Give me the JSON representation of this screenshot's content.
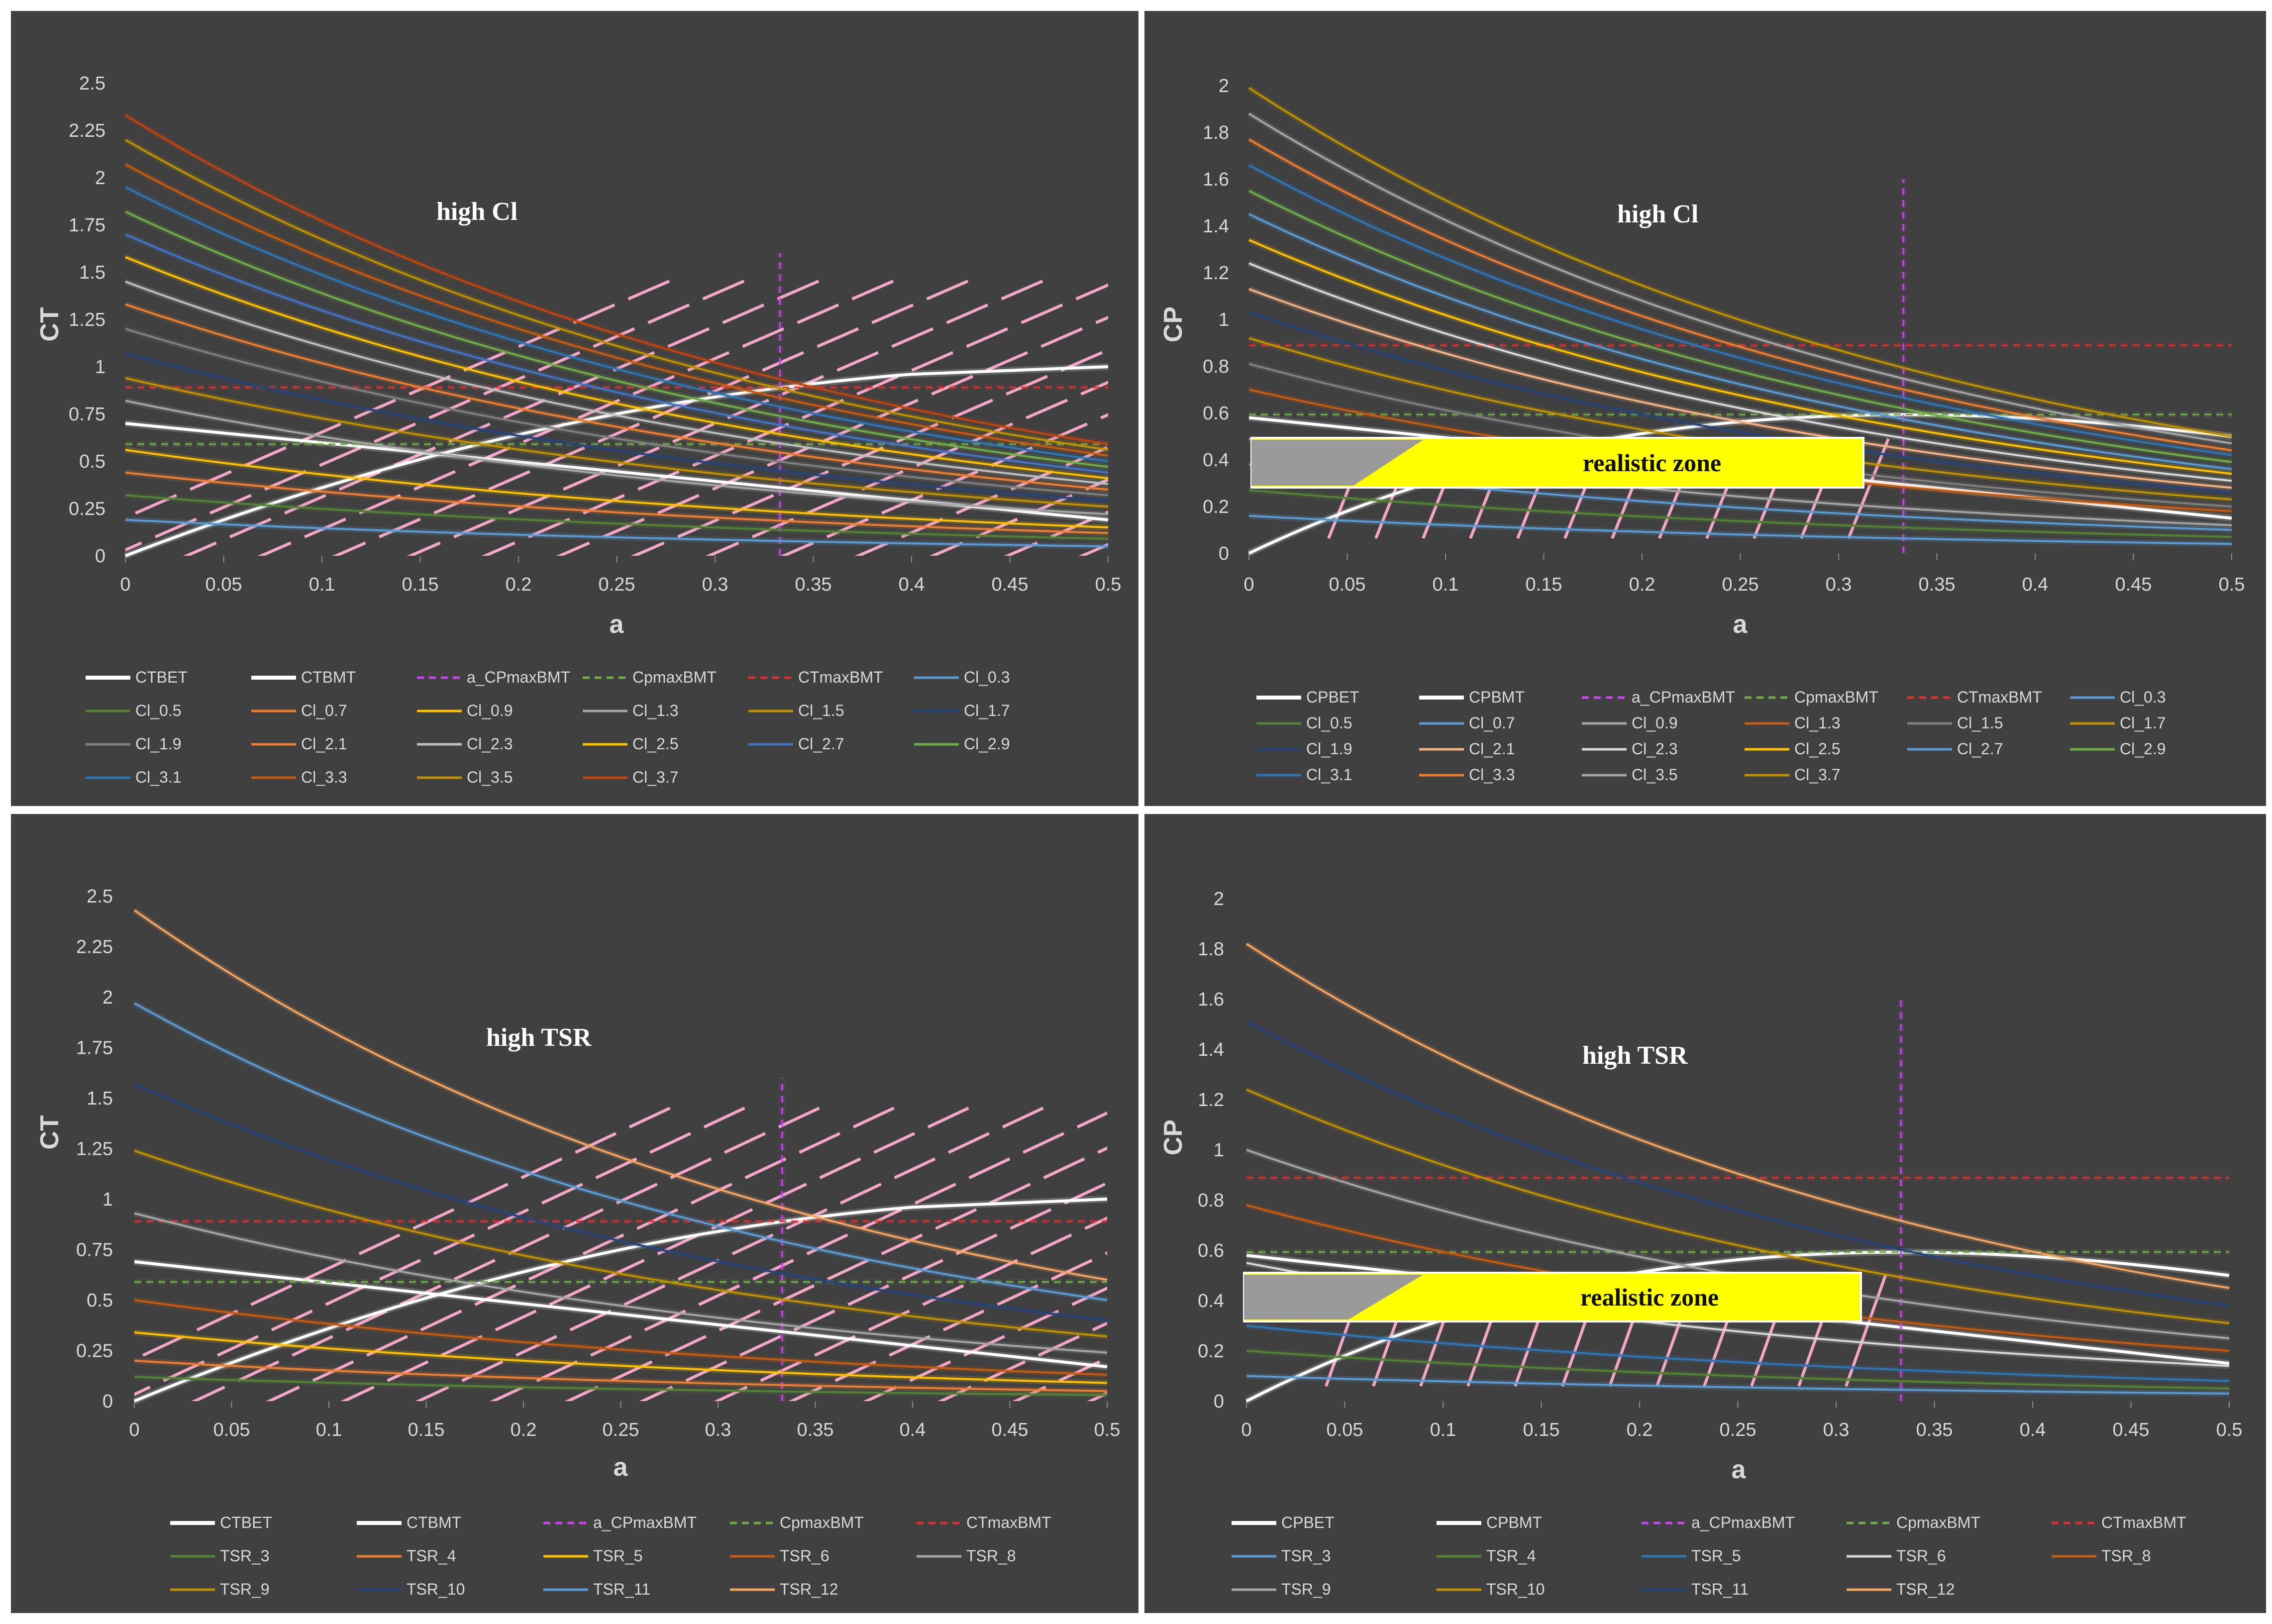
{
  "chart_data": [
    {
      "id": "p1",
      "type": "line",
      "ylabel": "CT",
      "xlabel": "a",
      "xlim": [
        0,
        0.5
      ],
      "ylim": [
        0,
        2.5
      ],
      "xticks": [
        "0",
        "0.05",
        "0.1",
        "0.15",
        "0.2",
        "0.25",
        "0.3",
        "0.35",
        "0.4",
        "0.45",
        "0.5"
      ],
      "yticks": [
        "0",
        "0.25",
        "0.5",
        "0.75",
        "1",
        "1.25",
        "1.5",
        "1.75",
        "2",
        "2.25",
        "2.5"
      ],
      "annotation": "high Cl",
      "legend_rows": [
        [
          "CTBET",
          "CTBMT",
          "a_CPmaxBMT",
          "CpmaxBMT",
          "CTmaxBMT",
          "Cl_0.3"
        ],
        [
          "Cl_0.5",
          "Cl_0.7",
          "Cl_0.9",
          "Cl_1.3",
          "Cl_1.5",
          "Cl_1.7"
        ],
        [
          "Cl_1.9",
          "Cl_2.1",
          "Cl_2.3",
          "Cl_2.5",
          "Cl_2.7",
          "Cl_2.9"
        ],
        [
          "Cl_3.1",
          "Cl_3.3",
          "Cl_3.5",
          "Cl_3.7"
        ]
      ],
      "series": [
        {
          "name": "CTBET",
          "color": "#ffffff",
          "width": 6,
          "dash": "",
          "kind": "rise",
          "start": 0.0,
          "end": 1.0
        },
        {
          "name": "CTBMT",
          "color": "#ffffff",
          "width": 6,
          "dash": "",
          "kind": "linear",
          "start": 0.7,
          "end": 0.19
        },
        {
          "name": "a_CPmaxBMT",
          "color": "#cc44ee",
          "width": 3,
          "dash": "14,10",
          "kind": "vline",
          "x": 0.333,
          "y0": 0,
          "y1": 1.6
        },
        {
          "name": "CpmaxBMT",
          "color": "#70ad47",
          "width": 3,
          "dash": "14,10",
          "kind": "hline",
          "y": 0.59
        },
        {
          "name": "CTmaxBMT",
          "color": "#e03030",
          "width": 3,
          "dash": "14,10",
          "kind": "hline",
          "y": 0.89
        },
        {
          "name": "Cl_0.3",
          "color": "#5b9bd5",
          "width": 4,
          "dash": "",
          "kind": "decay",
          "start": 0.19,
          "end": 0.05
        },
        {
          "name": "Cl_0.5",
          "color": "#548235",
          "width": 4,
          "dash": "",
          "kind": "decay",
          "start": 0.32,
          "end": 0.09
        },
        {
          "name": "Cl_0.7",
          "color": "#ed7d31",
          "width": 4,
          "dash": "",
          "kind": "decay",
          "start": 0.44,
          "end": 0.12
        },
        {
          "name": "Cl_0.9",
          "color": "#ffc000",
          "width": 4,
          "dash": "",
          "kind": "decay",
          "start": 0.56,
          "end": 0.15
        },
        {
          "name": "Cl_1.3",
          "color": "#a5a5a5",
          "width": 4,
          "dash": "",
          "kind": "decay",
          "start": 0.82,
          "end": 0.22
        },
        {
          "name": "Cl_1.5",
          "color": "#c09000",
          "width": 4,
          "dash": "",
          "kind": "decay",
          "start": 0.94,
          "end": 0.26
        },
        {
          "name": "Cl_1.7",
          "color": "#264478",
          "width": 4,
          "dash": "",
          "kind": "decay",
          "start": 1.07,
          "end": 0.29
        },
        {
          "name": "Cl_1.9",
          "color": "#7f7f7f",
          "width": 4,
          "dash": "",
          "kind": "decay",
          "start": 1.2,
          "end": 0.32
        },
        {
          "name": "Cl_2.1",
          "color": "#ed7d31",
          "width": 4,
          "dash": "",
          "kind": "decay",
          "start": 1.33,
          "end": 0.35
        },
        {
          "name": "Cl_2.3",
          "color": "#bfbfbf",
          "width": 4,
          "dash": "",
          "kind": "decay",
          "start": 1.45,
          "end": 0.38
        },
        {
          "name": "Cl_2.5",
          "color": "#ffc000",
          "width": 4,
          "dash": "",
          "kind": "decay",
          "start": 1.58,
          "end": 0.41
        },
        {
          "name": "Cl_2.7",
          "color": "#4472c4",
          "width": 4,
          "dash": "",
          "kind": "decay",
          "start": 1.7,
          "end": 0.44
        },
        {
          "name": "Cl_2.9",
          "color": "#70ad47",
          "width": 4,
          "dash": "",
          "kind": "decay",
          "start": 1.82,
          "end": 0.47
        },
        {
          "name": "Cl_3.1",
          "color": "#2e75b6",
          "width": 4,
          "dash": "",
          "kind": "decay",
          "start": 1.95,
          "end": 0.5
        },
        {
          "name": "Cl_3.3",
          "color": "#c55a11",
          "width": 4,
          "dash": "",
          "kind": "decay",
          "start": 2.07,
          "end": 0.53
        },
        {
          "name": "Cl_3.5",
          "color": "#bf9000",
          "width": 4,
          "dash": "",
          "kind": "decay",
          "start": 2.2,
          "end": 0.56
        },
        {
          "name": "Cl_3.7",
          "color": "#c0440f",
          "width": 4,
          "dash": "",
          "kind": "decay",
          "start": 2.33,
          "end": 0.59
        }
      ]
    },
    {
      "id": "p2",
      "type": "line",
      "ylabel": "CP",
      "xlabel": "a",
      "xlim": [
        0,
        0.5
      ],
      "ylim": [
        0,
        2
      ],
      "xticks": [
        "0",
        "0.05",
        "0.1",
        "0.15",
        "0.2",
        "0.25",
        "0.3",
        "0.35",
        "0.4",
        "0.45",
        "0.5"
      ],
      "yticks": [
        "0",
        "0.2",
        "0.4",
        "0.6",
        "0.8",
        "1",
        "1.2",
        "1.4",
        "1.6",
        "1.8",
        "2"
      ],
      "annotation": "high Cl",
      "zone_label": "realistic zone",
      "legend_rows": [
        [
          "CPBET",
          "CPBMT",
          "a_CPmaxBMT",
          "CpmaxBMT",
          "CTmaxBMT",
          "Cl_0.3"
        ],
        [
          "Cl_0.5",
          "Cl_0.7",
          "Cl_0.9",
          "Cl_1.3",
          "Cl_1.5",
          "Cl_1.7"
        ],
        [
          "Cl_1.9",
          "Cl_2.1",
          "Cl_2.3",
          "Cl_2.5",
          "Cl_2.7",
          "Cl_2.9"
        ],
        [
          "Cl_3.1",
          "Cl_3.3",
          "Cl_3.5",
          "Cl_3.7"
        ]
      ],
      "series": [
        {
          "name": "CPBET",
          "color": "#ffffff",
          "width": 6,
          "dash": "",
          "kind": "cp",
          "start": 0.0,
          "end": 0.5
        },
        {
          "name": "CPBMT",
          "color": "#ffffff",
          "width": 6,
          "dash": "",
          "kind": "linear",
          "start": 0.58,
          "end": 0.15
        },
        {
          "name": "a_CPmaxBMT",
          "color": "#cc44ee",
          "width": 3,
          "dash": "14,10",
          "kind": "vline",
          "x": 0.333,
          "y0": 0,
          "y1": 1.6
        },
        {
          "name": "CpmaxBMT",
          "color": "#70ad47",
          "width": 3,
          "dash": "14,10",
          "kind": "hline",
          "y": 0.593
        },
        {
          "name": "CTmaxBMT",
          "color": "#e03030",
          "width": 3,
          "dash": "14,10",
          "kind": "hline",
          "y": 0.889
        },
        {
          "name": "Cl_0.3",
          "color": "#5b9bd5",
          "width": 4,
          "dash": "",
          "kind": "decay",
          "start": 0.16,
          "end": 0.04
        },
        {
          "name": "Cl_0.5",
          "color": "#548235",
          "width": 4,
          "dash": "",
          "kind": "decay",
          "start": 0.27,
          "end": 0.07
        },
        {
          "name": "Cl_0.7",
          "color": "#5b9bd5",
          "width": 4,
          "dash": "",
          "kind": "decay",
          "start": 0.38,
          "end": 0.1
        },
        {
          "name": "Cl_0.9",
          "color": "#a5a5a5",
          "width": 4,
          "dash": "",
          "kind": "decay",
          "start": 0.49,
          "end": 0.12
        },
        {
          "name": "Cl_1.3",
          "color": "#c55a11",
          "width": 4,
          "dash": "",
          "kind": "decay",
          "start": 0.7,
          "end": 0.18
        },
        {
          "name": "Cl_1.5",
          "color": "#7f7f7f",
          "width": 4,
          "dash": "",
          "kind": "decay",
          "start": 0.81,
          "end": 0.2
        },
        {
          "name": "Cl_1.7",
          "color": "#bf9000",
          "width": 4,
          "dash": "",
          "kind": "decay",
          "start": 0.92,
          "end": 0.23
        },
        {
          "name": "Cl_1.9",
          "color": "#264478",
          "width": 4,
          "dash": "",
          "kind": "decay",
          "start": 1.03,
          "end": 0.26
        },
        {
          "name": "Cl_2.1",
          "color": "#f4b183",
          "width": 4,
          "dash": "",
          "kind": "decay",
          "start": 1.13,
          "end": 0.28
        },
        {
          "name": "Cl_2.3",
          "color": "#d9d9d9",
          "width": 4,
          "dash": "",
          "kind": "decay",
          "start": 1.24,
          "end": 0.31
        },
        {
          "name": "Cl_2.5",
          "color": "#ffc000",
          "width": 4,
          "dash": "",
          "kind": "decay",
          "start": 1.34,
          "end": 0.34
        },
        {
          "name": "Cl_2.7",
          "color": "#5b9bd5",
          "width": 4,
          "dash": "",
          "kind": "decay",
          "start": 1.45,
          "end": 0.36
        },
        {
          "name": "Cl_2.9",
          "color": "#70ad47",
          "width": 4,
          "dash": "",
          "kind": "decay",
          "start": 1.55,
          "end": 0.39
        },
        {
          "name": "Cl_3.1",
          "color": "#2e75b6",
          "width": 4,
          "dash": "",
          "kind": "decay",
          "start": 1.66,
          "end": 0.42
        },
        {
          "name": "Cl_3.3",
          "color": "#ed7d31",
          "width": 4,
          "dash": "",
          "kind": "decay",
          "start": 1.77,
          "end": 0.44
        },
        {
          "name": "Cl_3.5",
          "color": "#a5a5a5",
          "width": 4,
          "dash": "",
          "kind": "decay",
          "start": 1.88,
          "end": 0.47
        },
        {
          "name": "Cl_3.7",
          "color": "#bf9000",
          "width": 4,
          "dash": "",
          "kind": "decay",
          "start": 1.99,
          "end": 0.5
        }
      ]
    },
    {
      "id": "p3",
      "type": "line",
      "ylabel": "CT",
      "xlabel": "a",
      "xlim": [
        0,
        0.5
      ],
      "ylim": [
        0,
        2.5
      ],
      "xticks": [
        "0",
        "0.05",
        "0.1",
        "0.15",
        "0.2",
        "0.25",
        "0.3",
        "0.35",
        "0.4",
        "0.45",
        "0.5"
      ],
      "yticks": [
        "0",
        "0.25",
        "0.5",
        "0.75",
        "1",
        "1.25",
        "1.5",
        "1.75",
        "2",
        "2.25",
        "2.5"
      ],
      "annotation": "high TSR",
      "legend_rows": [
        [
          "CTBET",
          "CTBMT",
          "a_CPmaxBMT",
          "CpmaxBMT",
          "CTmaxBMT"
        ],
        [
          "TSR_3",
          "TSR_4",
          "TSR_5",
          "TSR_6",
          "TSR_8"
        ],
        [
          "TSR_9",
          "TSR_10",
          "TSR_11",
          "TSR_12"
        ]
      ],
      "series": [
        {
          "name": "CTBET",
          "color": "#ffffff",
          "width": 6,
          "dash": "",
          "kind": "rise",
          "start": 0.0,
          "end": 1.0
        },
        {
          "name": "CTBMT",
          "color": "#ffffff",
          "width": 6,
          "dash": "",
          "kind": "linear",
          "start": 0.69,
          "end": 0.17
        },
        {
          "name": "a_CPmaxBMT",
          "color": "#cc44ee",
          "width": 3,
          "dash": "14,10",
          "kind": "vline",
          "x": 0.333,
          "y0": 0,
          "y1": 1.6
        },
        {
          "name": "CpmaxBMT",
          "color": "#70ad47",
          "width": 3,
          "dash": "14,10",
          "kind": "hline",
          "y": 0.59
        },
        {
          "name": "CTmaxBMT",
          "color": "#e03030",
          "width": 3,
          "dash": "14,10",
          "kind": "hline",
          "y": 0.89
        },
        {
          "name": "TSR_3",
          "color": "#548235",
          "width": 4,
          "dash": "",
          "kind": "decay",
          "start": 0.12,
          "end": 0.03
        },
        {
          "name": "TSR_4",
          "color": "#ed7d31",
          "width": 4,
          "dash": "",
          "kind": "decay",
          "start": 0.2,
          "end": 0.05
        },
        {
          "name": "TSR_5",
          "color": "#ffc000",
          "width": 4,
          "dash": "",
          "kind": "decay",
          "start": 0.34,
          "end": 0.09
        },
        {
          "name": "TSR_6",
          "color": "#c55a11",
          "width": 4,
          "dash": "",
          "kind": "decay",
          "start": 0.5,
          "end": 0.13
        },
        {
          "name": "TSR_8",
          "color": "#a5a5a5",
          "width": 4,
          "dash": "",
          "kind": "decay",
          "start": 0.93,
          "end": 0.24
        },
        {
          "name": "TSR_9",
          "color": "#bf9000",
          "width": 4,
          "dash": "",
          "kind": "decay",
          "start": 1.24,
          "end": 0.32
        },
        {
          "name": "TSR_10",
          "color": "#264478",
          "width": 4,
          "dash": "",
          "kind": "decay",
          "start": 1.57,
          "end": 0.4
        },
        {
          "name": "TSR_11",
          "color": "#5b9bd5",
          "width": 4,
          "dash": "",
          "kind": "decay",
          "start": 1.97,
          "end": 0.5
        },
        {
          "name": "TSR_12",
          "color": "#f4a460",
          "width": 4,
          "dash": "",
          "kind": "decay",
          "start": 2.43,
          "end": 0.6
        }
      ]
    },
    {
      "id": "p4",
      "type": "line",
      "ylabel": "CP",
      "xlabel": "a",
      "xlim": [
        0,
        0.5
      ],
      "ylim": [
        0,
        2
      ],
      "xticks": [
        "0",
        "0.05",
        "0.1",
        "0.15",
        "0.2",
        "0.25",
        "0.3",
        "0.35",
        "0.4",
        "0.45",
        "0.5"
      ],
      "yticks": [
        "0",
        "0.2",
        "0.4",
        "0.6",
        "0.8",
        "1",
        "1.2",
        "1.4",
        "1.6",
        "1.8",
        "2"
      ],
      "annotation": "high TSR",
      "zone_label": "realistic zone",
      "legend_rows": [
        [
          "CPBET",
          "CPBMT",
          "a_CPmaxBMT",
          "CpmaxBMT",
          "CTmaxBMT"
        ],
        [
          "TSR_3",
          "TSR_4",
          "TSR_5",
          "TSR_6",
          "TSR_8"
        ],
        [
          "TSR_9",
          "TSR_10",
          "TSR_11",
          "TSR_12"
        ]
      ],
      "series": [
        {
          "name": "CPBET",
          "color": "#ffffff",
          "width": 6,
          "dash": "",
          "kind": "cp",
          "start": 0.0,
          "end": 0.5
        },
        {
          "name": "CPBMT",
          "color": "#ffffff",
          "width": 6,
          "dash": "",
          "kind": "linear",
          "start": 0.58,
          "end": 0.15
        },
        {
          "name": "a_CPmaxBMT",
          "color": "#cc44ee",
          "width": 3,
          "dash": "14,10",
          "kind": "vline",
          "x": 0.333,
          "y0": 0,
          "y1": 1.6
        },
        {
          "name": "CpmaxBMT",
          "color": "#70ad47",
          "width": 3,
          "dash": "14,10",
          "kind": "hline",
          "y": 0.593
        },
        {
          "name": "CTmaxBMT",
          "color": "#e03030",
          "width": 3,
          "dash": "14,10",
          "kind": "hline",
          "y": 0.889
        },
        {
          "name": "TSR_3",
          "color": "#5b9bd5",
          "width": 4,
          "dash": "",
          "kind": "decay",
          "start": 0.1,
          "end": 0.03
        },
        {
          "name": "TSR_4",
          "color": "#548235",
          "width": 4,
          "dash": "",
          "kind": "decay",
          "start": 0.2,
          "end": 0.05
        },
        {
          "name": "TSR_5",
          "color": "#2e75b6",
          "width": 4,
          "dash": "",
          "kind": "decay",
          "start": 0.3,
          "end": 0.08
        },
        {
          "name": "TSR_6",
          "color": "#d9d9d9",
          "width": 4,
          "dash": "",
          "kind": "decay",
          "start": 0.55,
          "end": 0.14
        },
        {
          "name": "TSR_8",
          "color": "#c55a11",
          "width": 4,
          "dash": "",
          "kind": "decay",
          "start": 0.78,
          "end": 0.2
        },
        {
          "name": "TSR_9",
          "color": "#a5a5a5",
          "width": 4,
          "dash": "",
          "kind": "decay",
          "start": 1.0,
          "end": 0.25
        },
        {
          "name": "TSR_10",
          "color": "#bf9000",
          "width": 4,
          "dash": "",
          "kind": "decay",
          "start": 1.24,
          "end": 0.31
        },
        {
          "name": "TSR_11",
          "color": "#264478",
          "width": 4,
          "dash": "",
          "kind": "decay",
          "start": 1.51,
          "end": 0.38
        },
        {
          "name": "TSR_12",
          "color": "#f4a460",
          "width": 4,
          "dash": "",
          "kind": "decay",
          "start": 1.82,
          "end": 0.45
        }
      ]
    }
  ]
}
